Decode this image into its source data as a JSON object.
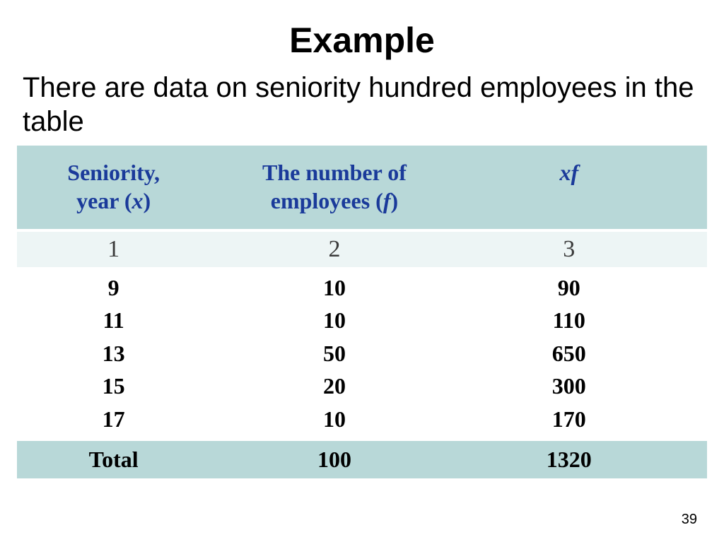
{
  "title": "Example",
  "subtitle": "There are data on seniority hundred employees in the table",
  "table": {
    "columns": [
      {
        "line1": "Seniority,",
        "line2_pre": "year  (",
        "var": "х",
        "line2_post": ")"
      },
      {
        "line1": "The number of",
        "line2_pre": "employees (",
        "var": "f",
        "line2_post": ")"
      },
      {
        "var1": "x",
        "var2": "f"
      }
    ],
    "number_row": [
      "1",
      "2",
      "3"
    ],
    "data": {
      "x": [
        "9",
        "11",
        "13",
        "15",
        "17"
      ],
      "f": [
        "10",
        "10",
        "50",
        "20",
        "10"
      ],
      "xf": [
        "90",
        "110",
        "650",
        "300",
        "170"
      ]
    },
    "total": {
      "label": "Total",
      "f": "100",
      "xf": "1320"
    }
  },
  "page_number": "39",
  "colors": {
    "header_bg": "#b8d8d8",
    "header_text": "#1a3a9a",
    "alt_row_bg": "#edf5f5",
    "body_bg": "#ffffff",
    "text": "#000000"
  }
}
